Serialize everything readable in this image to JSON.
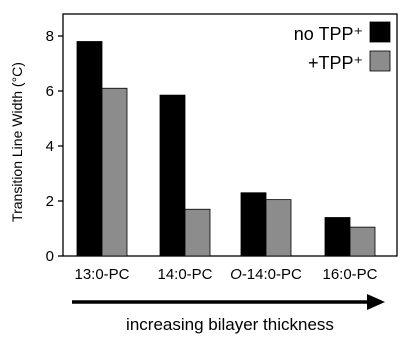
{
  "chart_data": {
    "type": "bar",
    "title": "",
    "xlabel": "",
    "ylabel": "Transition Line Width (°C)",
    "ylim": [
      0,
      8.8
    ],
    "yticks": [
      "0",
      "2",
      "4",
      "6",
      "8"
    ],
    "grid": false,
    "legend_position": "top-right",
    "categories": [
      "13:0-PC",
      "14:0-PC",
      "O-14:0-PC",
      "16:0-PC"
    ],
    "series": [
      {
        "name": "no TPP⁺",
        "color": "#000000",
        "values": [
          7.8,
          5.85,
          2.3,
          1.4
        ]
      },
      {
        "name": "+TPP⁺",
        "color": "#8c8c8c",
        "values": [
          6.1,
          1.7,
          2.05,
          1.05
        ]
      }
    ],
    "annotation": "increasing bilayer thickness"
  }
}
